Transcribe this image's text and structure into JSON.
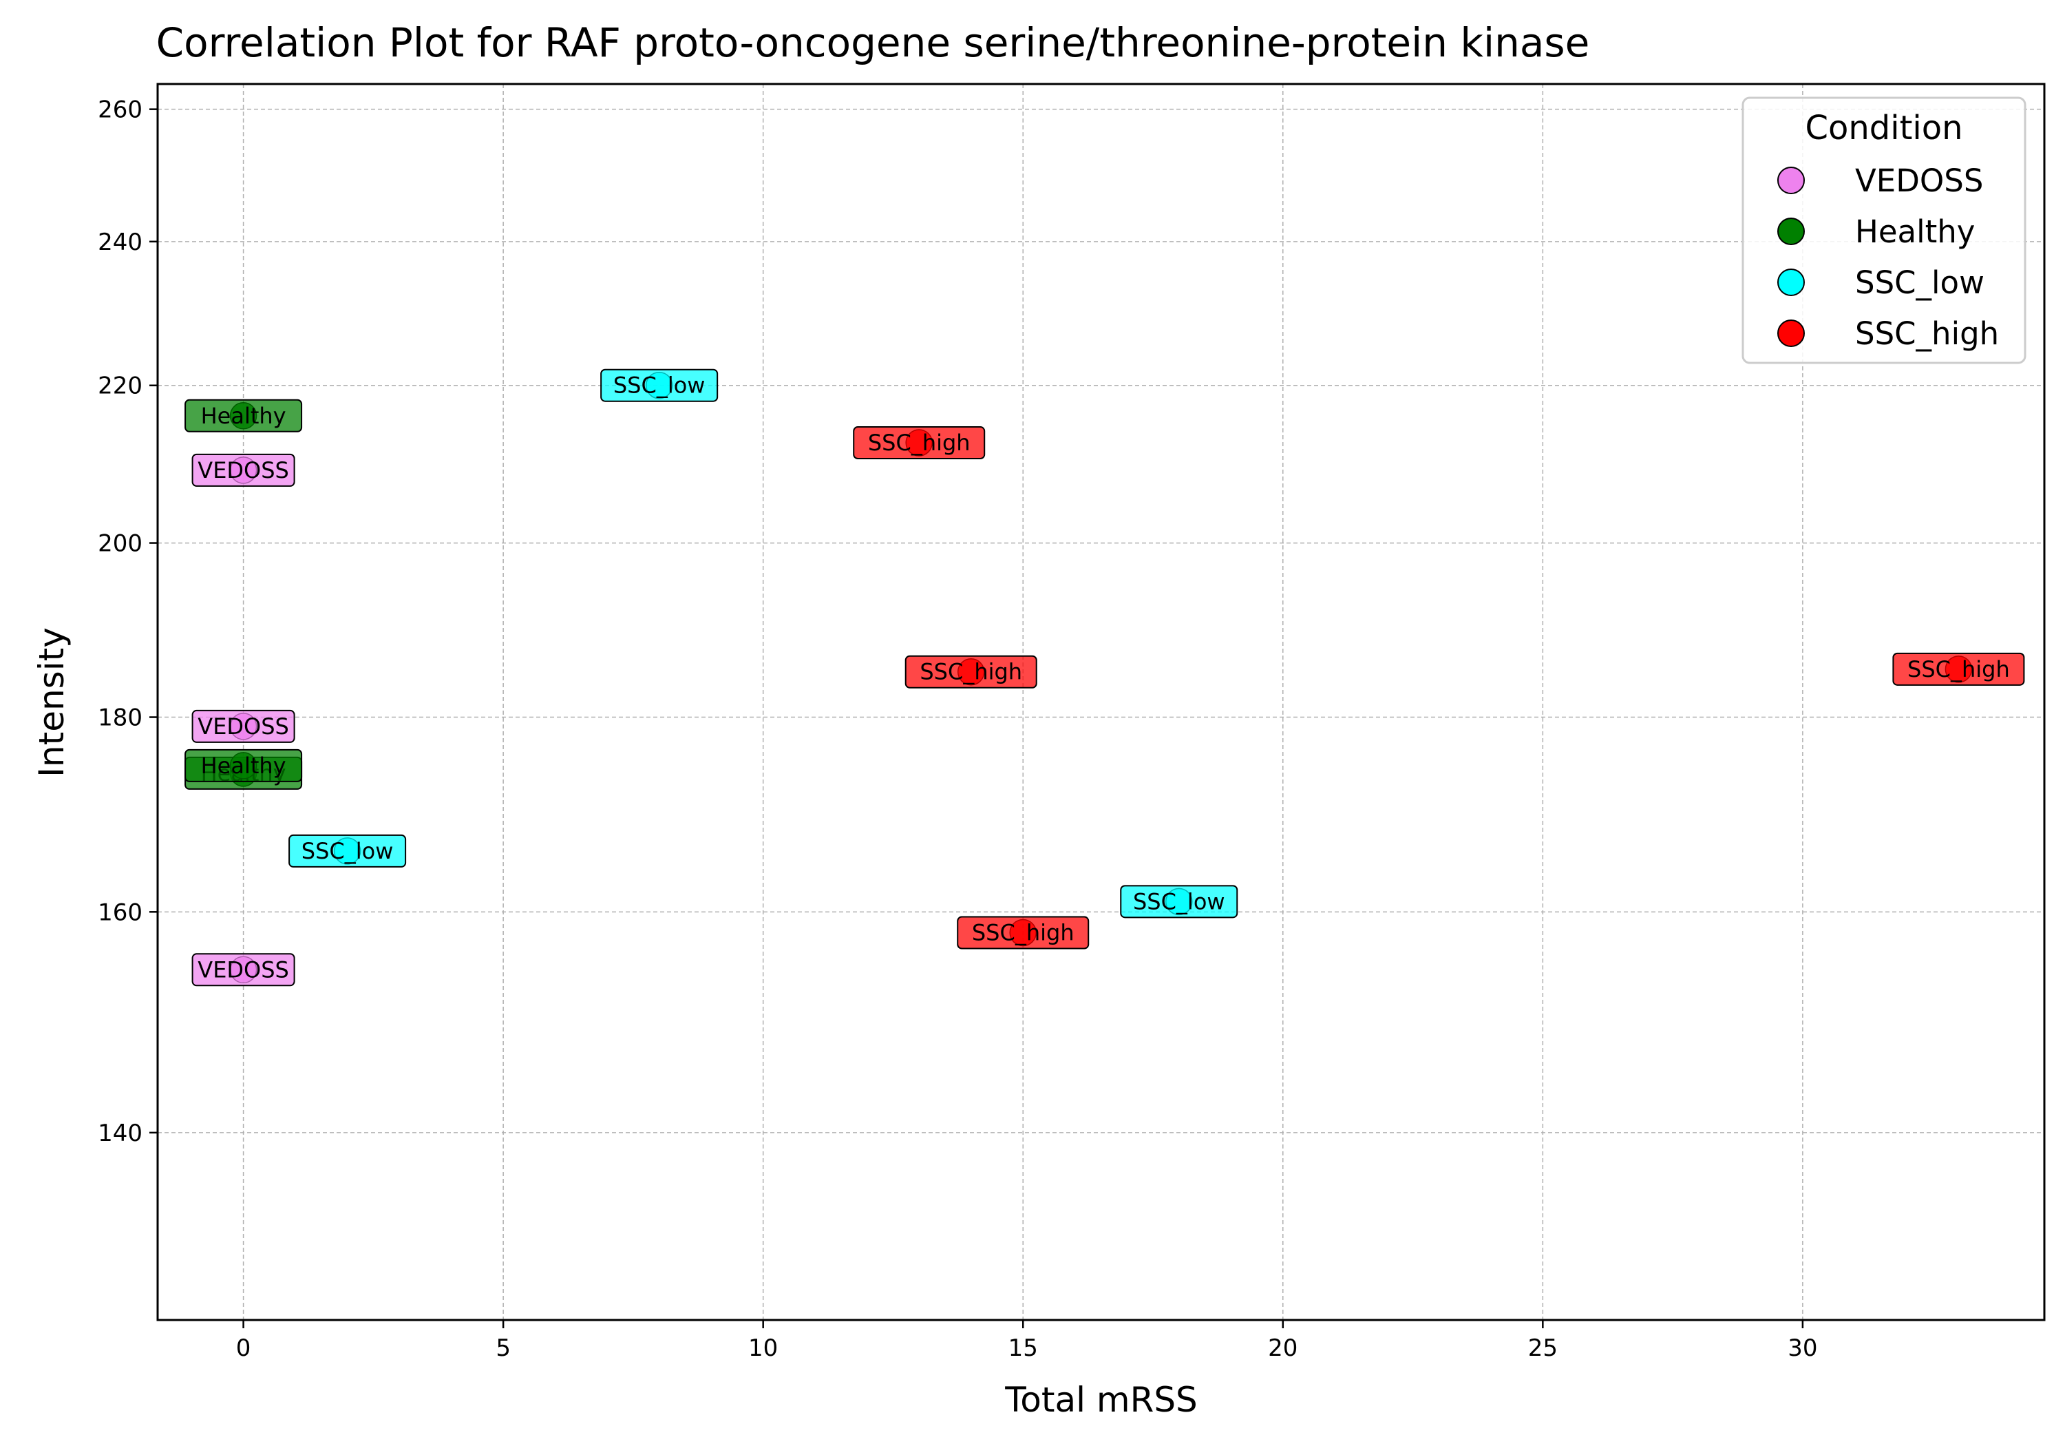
{
  "chart_data": {
    "type": "scatter",
    "title": "Correlation Plot for RAF proto-oncogene serine/threonine-protein kinase",
    "xlabel": "Total mRSS",
    "ylabel": "Intensity",
    "xlim": [
      -1.65,
      34.65
    ],
    "ylim": [
      125,
      264
    ],
    "y_scale": "log",
    "x_ticks": [
      0,
      5,
      10,
      15,
      20,
      25,
      30
    ],
    "y_ticks": [
      140,
      160,
      180,
      200,
      220,
      240,
      260
    ],
    "grid": true,
    "legend": {
      "title": "Condition",
      "placement": "top-right",
      "entries": [
        "VEDOSS",
        "Healthy",
        "SSC_low",
        "SSC_high"
      ]
    },
    "colors": {
      "VEDOSS": "#ee82ee",
      "Healthy": "#008000",
      "SSC_low": "#00ffff",
      "SSC_high": "#ff0000"
    },
    "points": [
      {
        "condition": "Healthy",
        "label": "Healthy",
        "x": 0,
        "y": 216
      },
      {
        "condition": "VEDOSS",
        "label": "VEDOSS",
        "x": 0,
        "y": 209
      },
      {
        "condition": "VEDOSS",
        "label": "VEDOSS",
        "x": 0,
        "y": 179
      },
      {
        "condition": "Healthy",
        "label": "Healthy",
        "x": 0,
        "y": 174
      },
      {
        "condition": "Healthy",
        "label": "Healthy",
        "x": 0,
        "y": 174.8
      },
      {
        "condition": "VEDOSS",
        "label": "VEDOSS",
        "x": 0,
        "y": 154.5
      },
      {
        "condition": "SSC_low",
        "label": "SSC_low",
        "x": 2,
        "y": 166
      },
      {
        "condition": "SSC_low",
        "label": "SSC_low",
        "x": 8,
        "y": 220
      },
      {
        "condition": "SSC_high",
        "label": "SSC_high",
        "x": 13,
        "y": 212.5
      },
      {
        "condition": "SSC_high",
        "label": "SSC_high",
        "x": 14,
        "y": 185
      },
      {
        "condition": "SSC_high",
        "label": "SSC_high",
        "x": 15,
        "y": 158
      },
      {
        "condition": "SSC_low",
        "label": "SSC_low",
        "x": 18,
        "y": 161
      },
      {
        "condition": "SSC_high",
        "label": "SSC_high",
        "x": 33,
        "y": 185.3
      }
    ]
  }
}
